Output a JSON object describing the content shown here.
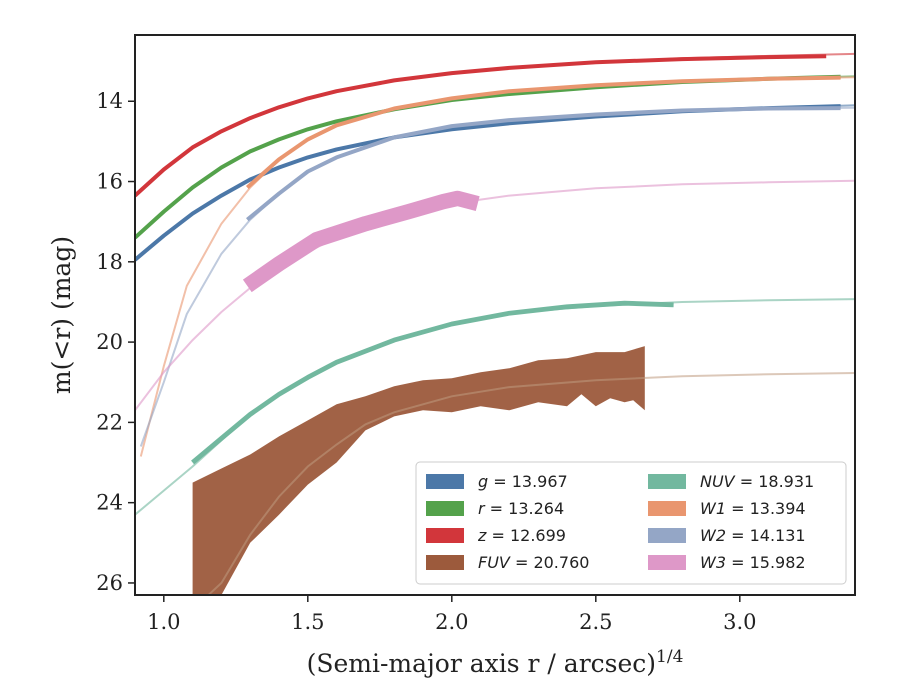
{
  "chart_data": {
    "type": "line",
    "xlabel": "(Semi-major axis r / arcsec)",
    "xlabel_sup": "1/4",
    "ylabel": "m(<r) (mag)",
    "xlim": [
      0.9,
      3.4
    ],
    "ylim": [
      26.3,
      12.35
    ],
    "y_inverted": true,
    "grid": false,
    "legend_position": "lower-right",
    "xticks": [
      1.0,
      1.5,
      2.0,
      2.5,
      3.0
    ],
    "xtick_labels": [
      "1.0",
      "1.5",
      "2.0",
      "2.5",
      "3.0"
    ],
    "yticks": [
      14,
      16,
      18,
      20,
      22,
      24,
      26
    ],
    "ytick_labels": [
      "14",
      "16",
      "18",
      "20",
      "22",
      "24",
      "26"
    ],
    "legend": [
      {
        "band": "g",
        "value": "13.967",
        "color": "#4c78a8"
      },
      {
        "band": "r",
        "value": "13.264",
        "color": "#54a24b"
      },
      {
        "band": "z",
        "value": "12.699",
        "color": "#d2363b"
      },
      {
        "band": "FUV",
        "value": "20.760",
        "color": "#9c5a3c"
      },
      {
        "band": "NUV",
        "value": "18.931",
        "color": "#72b89f"
      },
      {
        "band": "W1",
        "value": "13.394",
        "color": "#e9966f"
      },
      {
        "band": "W2",
        "value": "14.131",
        "color": "#94a6c6"
      },
      {
        "band": "W3",
        "value": "15.982",
        "color": "#de98c8"
      }
    ],
    "series": [
      {
        "name": "g",
        "color": "#4c78a8",
        "model": [
          [
            0.9,
            17.95
          ],
          [
            1.0,
            17.35
          ],
          [
            1.1,
            16.8
          ],
          [
            1.2,
            16.35
          ],
          [
            1.3,
            15.95
          ],
          [
            1.4,
            15.65
          ],
          [
            1.5,
            15.4
          ],
          [
            1.6,
            15.2
          ],
          [
            1.8,
            14.9
          ],
          [
            2.0,
            14.7
          ],
          [
            2.2,
            14.55
          ],
          [
            2.5,
            14.38
          ],
          [
            2.8,
            14.25
          ],
          [
            3.1,
            14.17
          ],
          [
            3.4,
            14.1
          ]
        ],
        "data": [
          [
            0.9,
            17.95
          ],
          [
            1.0,
            17.35
          ],
          [
            1.1,
            16.8
          ],
          [
            1.2,
            16.35
          ],
          [
            1.3,
            15.95
          ],
          [
            1.4,
            15.65
          ],
          [
            1.5,
            15.4
          ],
          [
            1.6,
            15.2
          ],
          [
            1.8,
            14.9
          ],
          [
            2.0,
            14.7
          ],
          [
            2.2,
            14.55
          ],
          [
            2.5,
            14.38
          ],
          [
            2.8,
            14.25
          ],
          [
            3.1,
            14.17
          ],
          [
            3.35,
            14.12
          ]
        ],
        "data_width_mag": 0.1
      },
      {
        "name": "r",
        "color": "#54a24b",
        "model": [
          [
            0.9,
            17.4
          ],
          [
            1.0,
            16.75
          ],
          [
            1.1,
            16.15
          ],
          [
            1.2,
            15.65
          ],
          [
            1.3,
            15.25
          ],
          [
            1.4,
            14.95
          ],
          [
            1.5,
            14.7
          ],
          [
            1.6,
            14.5
          ],
          [
            1.8,
            14.2
          ],
          [
            2.0,
            13.97
          ],
          [
            2.2,
            13.82
          ],
          [
            2.5,
            13.65
          ],
          [
            2.8,
            13.52
          ],
          [
            3.1,
            13.44
          ],
          [
            3.4,
            13.38
          ]
        ],
        "data": [
          [
            0.9,
            17.4
          ],
          [
            1.0,
            16.75
          ],
          [
            1.1,
            16.15
          ],
          [
            1.2,
            15.65
          ],
          [
            1.3,
            15.25
          ],
          [
            1.4,
            14.95
          ],
          [
            1.5,
            14.7
          ],
          [
            1.6,
            14.5
          ],
          [
            1.8,
            14.2
          ],
          [
            2.0,
            13.97
          ],
          [
            2.2,
            13.82
          ],
          [
            2.5,
            13.65
          ],
          [
            2.8,
            13.52
          ],
          [
            3.1,
            13.44
          ],
          [
            3.35,
            13.39
          ]
        ],
        "data_width_mag": 0.1
      },
      {
        "name": "z",
        "color": "#d2363b",
        "model": [
          [
            0.9,
            16.35
          ],
          [
            1.0,
            15.7
          ],
          [
            1.1,
            15.15
          ],
          [
            1.2,
            14.75
          ],
          [
            1.3,
            14.42
          ],
          [
            1.4,
            14.15
          ],
          [
            1.5,
            13.93
          ],
          [
            1.6,
            13.75
          ],
          [
            1.8,
            13.48
          ],
          [
            2.0,
            13.3
          ],
          [
            2.2,
            13.17
          ],
          [
            2.5,
            13.03
          ],
          [
            2.8,
            12.93
          ],
          [
            3.1,
            12.87
          ],
          [
            3.4,
            12.82
          ]
        ],
        "data": [
          [
            0.9,
            16.35
          ],
          [
            1.0,
            15.7
          ],
          [
            1.1,
            15.15
          ],
          [
            1.2,
            14.75
          ],
          [
            1.3,
            14.42
          ],
          [
            1.4,
            14.15
          ],
          [
            1.5,
            13.93
          ],
          [
            1.6,
            13.75
          ],
          [
            1.8,
            13.48
          ],
          [
            2.0,
            13.3
          ],
          [
            2.2,
            13.17
          ],
          [
            2.5,
            13.03
          ],
          [
            2.8,
            12.95
          ],
          [
            3.1,
            12.9
          ],
          [
            3.3,
            12.88
          ]
        ],
        "data_width_mag": 0.1
      },
      {
        "name": "W1",
        "color": "#e9966f",
        "model": [
          [
            0.92,
            22.85
          ],
          [
            1.0,
            20.6
          ],
          [
            1.08,
            18.6
          ],
          [
            1.2,
            17.05
          ],
          [
            1.3,
            16.15
          ],
          [
            1.4,
            15.45
          ],
          [
            1.5,
            14.95
          ],
          [
            1.6,
            14.6
          ],
          [
            1.8,
            14.18
          ],
          [
            2.0,
            13.93
          ],
          [
            2.2,
            13.75
          ],
          [
            2.5,
            13.6
          ],
          [
            2.8,
            13.5
          ],
          [
            3.1,
            13.44
          ],
          [
            3.4,
            13.4
          ]
        ],
        "data": [
          [
            1.29,
            16.15
          ],
          [
            1.4,
            15.45
          ],
          [
            1.5,
            14.95
          ],
          [
            1.6,
            14.6
          ],
          [
            1.8,
            14.18
          ],
          [
            2.0,
            13.93
          ],
          [
            2.2,
            13.75
          ],
          [
            2.5,
            13.6
          ],
          [
            2.8,
            13.5
          ],
          [
            3.1,
            13.44
          ],
          [
            3.35,
            13.41
          ]
        ],
        "data_width_mag": 0.1
      },
      {
        "name": "W2",
        "color": "#94a6c6",
        "model": [
          [
            0.92,
            22.6
          ],
          [
            1.0,
            21.0
          ],
          [
            1.08,
            19.3
          ],
          [
            1.2,
            17.8
          ],
          [
            1.3,
            16.95
          ],
          [
            1.4,
            16.3
          ],
          [
            1.5,
            15.75
          ],
          [
            1.6,
            15.4
          ],
          [
            1.8,
            14.9
          ],
          [
            2.0,
            14.62
          ],
          [
            2.2,
            14.47
          ],
          [
            2.5,
            14.33
          ],
          [
            2.8,
            14.23
          ],
          [
            3.1,
            14.18
          ],
          [
            3.4,
            14.16
          ]
        ],
        "data": [
          [
            1.29,
            16.95
          ],
          [
            1.4,
            16.3
          ],
          [
            1.5,
            15.75
          ],
          [
            1.6,
            15.4
          ],
          [
            1.8,
            14.9
          ],
          [
            2.0,
            14.62
          ],
          [
            2.2,
            14.47
          ],
          [
            2.5,
            14.33
          ],
          [
            2.8,
            14.23
          ],
          [
            3.1,
            14.18
          ],
          [
            3.35,
            14.17
          ]
        ],
        "data_width_mag": 0.1
      },
      {
        "name": "W3",
        "color": "#de98c8",
        "model": [
          [
            0.9,
            21.7
          ],
          [
            1.0,
            20.75
          ],
          [
            1.1,
            19.95
          ],
          [
            1.2,
            19.25
          ],
          [
            1.3,
            18.65
          ],
          [
            1.4,
            18.15
          ],
          [
            1.5,
            17.75
          ],
          [
            1.6,
            17.4
          ],
          [
            1.8,
            16.9
          ],
          [
            2.0,
            16.55
          ],
          [
            2.2,
            16.35
          ],
          [
            2.5,
            16.17
          ],
          [
            2.8,
            16.07
          ],
          [
            3.1,
            16.02
          ],
          [
            3.4,
            15.98
          ]
        ],
        "data": [
          [
            1.29,
            18.6
          ],
          [
            1.4,
            18.05
          ],
          [
            1.53,
            17.45
          ],
          [
            1.7,
            17.05
          ],
          [
            1.85,
            16.75
          ],
          [
            1.97,
            16.5
          ],
          [
            2.02,
            16.42
          ],
          [
            2.09,
            16.55
          ]
        ],
        "data_width_mag": 0.38
      },
      {
        "name": "NUV",
        "color": "#72b89f",
        "model": [
          [
            0.9,
            24.3
          ],
          [
            1.0,
            23.7
          ],
          [
            1.1,
            23.1
          ],
          [
            1.2,
            22.45
          ],
          [
            1.3,
            21.8
          ],
          [
            1.4,
            21.3
          ],
          [
            1.5,
            20.88
          ],
          [
            1.6,
            20.5
          ],
          [
            1.8,
            19.95
          ],
          [
            2.0,
            19.55
          ],
          [
            2.2,
            19.28
          ],
          [
            2.5,
            19.1
          ],
          [
            2.8,
            19.0
          ],
          [
            3.1,
            18.96
          ],
          [
            3.4,
            18.93
          ]
        ],
        "data": [
          [
            1.1,
            23.0
          ],
          [
            1.2,
            22.4
          ],
          [
            1.3,
            21.8
          ],
          [
            1.4,
            21.3
          ],
          [
            1.5,
            20.88
          ],
          [
            1.6,
            20.5
          ],
          [
            1.8,
            19.95
          ],
          [
            2.0,
            19.55
          ],
          [
            2.2,
            19.28
          ],
          [
            2.4,
            19.12
          ],
          [
            2.6,
            19.03
          ],
          [
            2.77,
            19.07
          ]
        ],
        "data_width_mag": 0.12
      }
    ],
    "fuv": {
      "name": "FUV",
      "color": "#9c5a3c",
      "model_color": "#c09a80",
      "model": [
        [
          1.05,
          27.0
        ],
        [
          1.2,
          26.0
        ],
        [
          1.3,
          24.8
        ],
        [
          1.4,
          23.85
        ],
        [
          1.5,
          23.1
        ],
        [
          1.6,
          22.55
        ],
        [
          1.7,
          22.05
        ],
        [
          1.8,
          21.75
        ],
        [
          2.0,
          21.35
        ],
        [
          2.2,
          21.12
        ],
        [
          2.5,
          20.95
        ],
        [
          2.8,
          20.85
        ],
        [
          3.1,
          20.8
        ],
        [
          3.4,
          20.77
        ]
      ],
      "band_upper": [
        [
          1.1,
          23.5
        ],
        [
          1.2,
          23.15
        ],
        [
          1.3,
          22.8
        ],
        [
          1.4,
          22.35
        ],
        [
          1.5,
          21.95
        ],
        [
          1.6,
          21.55
        ],
        [
          1.7,
          21.35
        ],
        [
          1.8,
          21.1
        ],
        [
          1.9,
          20.95
        ],
        [
          2.0,
          20.9
        ],
        [
          2.1,
          20.75
        ],
        [
          2.2,
          20.65
        ],
        [
          2.3,
          20.45
        ],
        [
          2.4,
          20.4
        ],
        [
          2.5,
          20.25
        ],
        [
          2.6,
          20.25
        ],
        [
          2.67,
          20.1
        ]
      ],
      "band_lower": [
        [
          2.67,
          21.7
        ],
        [
          2.63,
          21.45
        ],
        [
          2.6,
          21.5
        ],
        [
          2.55,
          21.4
        ],
        [
          2.5,
          21.6
        ],
        [
          2.45,
          21.3
        ],
        [
          2.4,
          21.6
        ],
        [
          2.3,
          21.5
        ],
        [
          2.2,
          21.7
        ],
        [
          2.1,
          21.6
        ],
        [
          2.0,
          21.75
        ],
        [
          1.9,
          21.7
        ],
        [
          1.8,
          21.85
        ],
        [
          1.7,
          22.2
        ],
        [
          1.6,
          23.0
        ],
        [
          1.5,
          23.55
        ],
        [
          1.4,
          24.3
        ],
        [
          1.3,
          25.0
        ],
        [
          1.2,
          26.3
        ],
        [
          1.1,
          26.3
        ]
      ]
    }
  }
}
